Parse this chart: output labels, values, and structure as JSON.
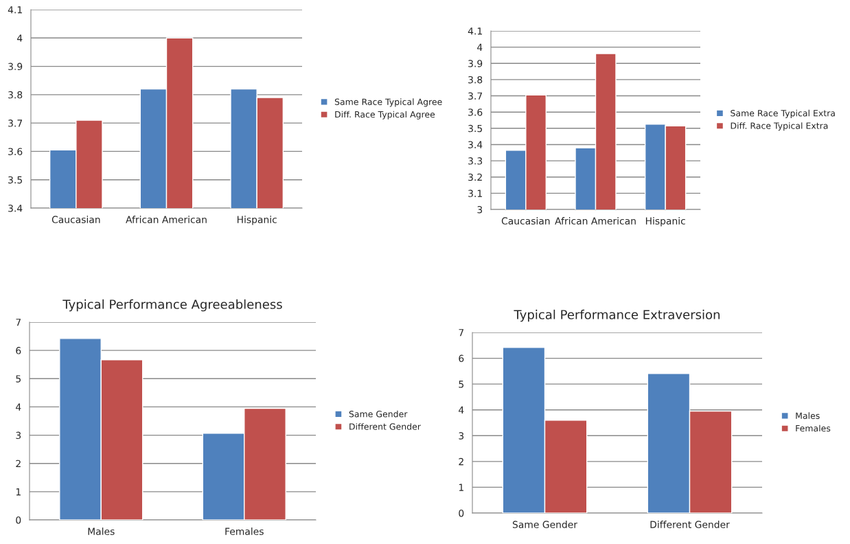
{
  "chart_data": [
    {
      "type": "bar",
      "categories": [
        "Caucasian",
        "African American",
        "Hispanic"
      ],
      "series": [
        {
          "name": "Same Race Typical Agree",
          "color": "#4f81bd",
          "values": [
            3.605,
            3.82,
            3.82
          ]
        },
        {
          "name": "Diff. Race Typical Agree",
          "color": "#c0504d",
          "values": [
            3.71,
            4.0,
            3.79
          ]
        }
      ],
      "ylim": [
        3.4,
        4.1
      ],
      "yticks": [
        3.4,
        3.5,
        3.6,
        3.7,
        3.8,
        3.9,
        4,
        4.1
      ],
      "grid": "y",
      "legend": "right"
    },
    {
      "type": "bar",
      "categories": [
        "Caucasian",
        "African American",
        "Hispanic"
      ],
      "series": [
        {
          "name": "Same Race Typical Extra",
          "color": "#4f81bd",
          "values": [
            3.365,
            3.38,
            3.525
          ]
        },
        {
          "name": "Diff. Race Typical Extra",
          "color": "#c0504d",
          "values": [
            3.705,
            3.96,
            3.515
          ]
        }
      ],
      "ylim": [
        3,
        4.1
      ],
      "yticks": [
        3,
        3.1,
        3.2,
        3.3,
        3.4,
        3.5,
        3.6,
        3.7,
        3.8,
        3.9,
        4,
        4.1
      ],
      "grid": "y",
      "legend": "right"
    },
    {
      "type": "bar",
      "title": "Typical Performance Agreeableness",
      "categories": [
        "Males",
        "Females"
      ],
      "series": [
        {
          "name": "Same Gender",
          "color": "#4f81bd",
          "values": [
            6.42,
            3.07
          ]
        },
        {
          "name": "Different Gender",
          "color": "#c0504d",
          "values": [
            5.67,
            3.95
          ]
        }
      ],
      "ylim": [
        0,
        7
      ],
      "yticks": [
        0,
        1,
        2,
        3,
        4,
        5,
        6,
        7
      ],
      "grid": "y",
      "legend": "right"
    },
    {
      "type": "bar",
      "title": "Typical Performance Extraversion",
      "categories": [
        "Same Gender",
        "Different Gender"
      ],
      "series": [
        {
          "name": "Males",
          "color": "#4f81bd",
          "values": [
            6.42,
            5.41
          ]
        },
        {
          "name": "Females",
          "color": "#c0504d",
          "values": [
            3.6,
            3.95
          ]
        }
      ],
      "ylim": [
        0,
        7
      ],
      "yticks": [
        0,
        1,
        2,
        3,
        4,
        5,
        6,
        7
      ],
      "grid": "y",
      "legend": "right"
    }
  ]
}
